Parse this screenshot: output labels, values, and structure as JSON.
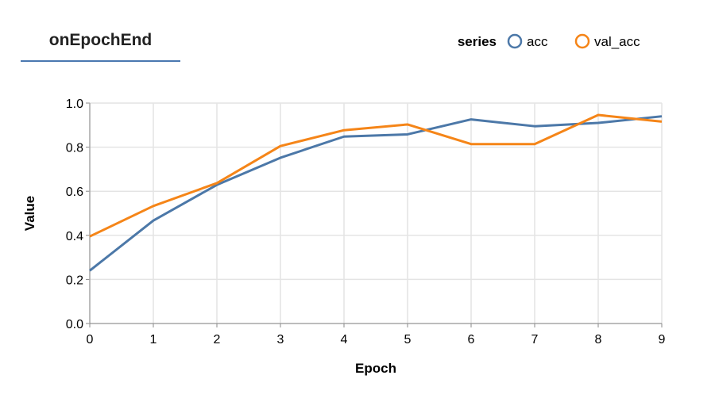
{
  "tab": {
    "label": "onEpochEnd"
  },
  "chart_data": {
    "type": "line",
    "title": "",
    "xlabel": "Epoch",
    "ylabel": "Value",
    "x": [
      0,
      1,
      2,
      3,
      4,
      5,
      6,
      7,
      8,
      9
    ],
    "xlim": [
      0,
      9
    ],
    "ylim": [
      0,
      1
    ],
    "xticks": [
      "0",
      "1",
      "2",
      "3",
      "4",
      "5",
      "6",
      "7",
      "8",
      "9"
    ],
    "yticks": [
      "0.0",
      "0.2",
      "0.4",
      "0.6",
      "0.8",
      "1.0"
    ],
    "grid": true,
    "legend": {
      "title": "series",
      "position": "top-right"
    },
    "series": [
      {
        "name": "acc",
        "color": "#4c78a8",
        "values": [
          0.24,
          0.467,
          0.629,
          0.752,
          0.848,
          0.858,
          0.926,
          0.895,
          0.91,
          0.94
        ]
      },
      {
        "name": "val_acc",
        "color": "#f58518",
        "values": [
          0.395,
          0.533,
          0.637,
          0.805,
          0.877,
          0.903,
          0.814,
          0.814,
          0.946,
          0.916
        ]
      }
    ]
  }
}
